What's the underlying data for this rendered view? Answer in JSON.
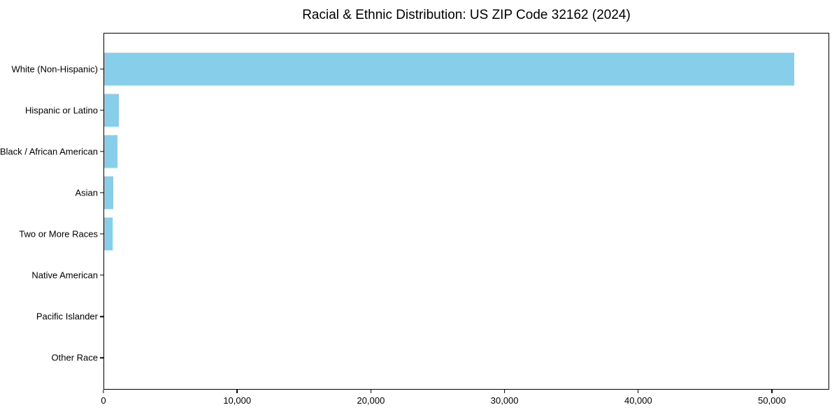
{
  "chart_data": {
    "type": "bar",
    "orientation": "horizontal",
    "title": "Racial & Ethnic Distribution: US ZIP Code 32162 (2024)",
    "categories": [
      "White (Non-Hispanic)",
      "Hispanic or Latino",
      "Black / African American",
      "Asian",
      "Two or More Races",
      "Native American",
      "Pacific Islander",
      "Other Race"
    ],
    "values": [
      51700,
      1100,
      1000,
      700,
      650,
      0,
      0,
      0
    ],
    "xlabel": "",
    "ylabel": "",
    "xlim": [
      0,
      54285
    ],
    "x_ticks": [
      {
        "value": 0,
        "label": "0"
      },
      {
        "value": 10000,
        "label": "10,000"
      },
      {
        "value": 20000,
        "label": "20,000"
      },
      {
        "value": 30000,
        "label": "30,000"
      },
      {
        "value": 40000,
        "label": "40,000"
      },
      {
        "value": 50000,
        "label": "50,000"
      }
    ],
    "grid": false,
    "legend": "none",
    "bar_color": "#87CEEB",
    "colors": {
      "background": "#FFFFFF",
      "spine": "#000000",
      "text": "#000000"
    }
  }
}
